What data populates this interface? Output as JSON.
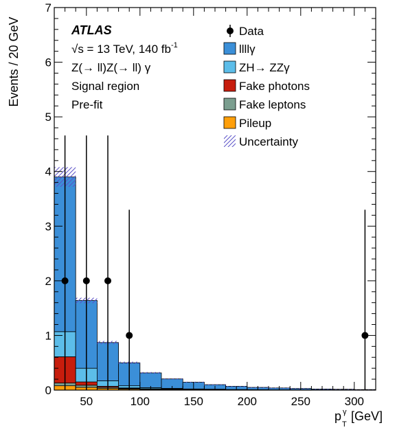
{
  "chart_data": {
    "type": "bar",
    "stacked": true,
    "xlim": [
      20,
      320
    ],
    "ylim": [
      0,
      7
    ],
    "xlabel": "p",
    "xlabel_sub": "T",
    "xlabel_sup": "γ",
    "xlabel_unit": "[GeV]",
    "ylabel": "Events / 20 GeV",
    "x_ticks": [
      50,
      100,
      150,
      200,
      250,
      300
    ],
    "y_ticks": [
      0,
      1,
      2,
      3,
      4,
      5,
      6,
      7
    ],
    "bin_edges": [
      20,
      40,
      60,
      80,
      100,
      120,
      140,
      160,
      180,
      200,
      220,
      240,
      260,
      280,
      300,
      320
    ],
    "legend_position": "top-right",
    "series": [
      {
        "name": "Pileup",
        "color": "#ff9f0a",
        "values": [
          0.08,
          0.05,
          0.03,
          0.02,
          0.01,
          0.01,
          0.005,
          0.005,
          0.003,
          0.002,
          0.002,
          0.001,
          0.001,
          0.001,
          0.001
        ]
      },
      {
        "name": "Fake leptons",
        "color": "#7b9e8f",
        "values": [
          0.05,
          0.04,
          0.02,
          0.01,
          0.01,
          0.005,
          0.004,
          0.003,
          0.002,
          0.002,
          0.001,
          0.001,
          0.001,
          0.001,
          0.001
        ]
      },
      {
        "name": "Fake photons",
        "color": "#c71d0d",
        "values": [
          0.48,
          0.06,
          0.02,
          0.01,
          0.005,
          0.005,
          0.004,
          0.003,
          0.002,
          0.002,
          0.001,
          0.001,
          0.001,
          0.001,
          0.0
        ]
      },
      {
        "name": "ZH→ ZZγ",
        "color": "#5cbde9",
        "values": [
          0.46,
          0.25,
          0.1,
          0.04,
          0.02,
          0.012,
          0.008,
          0.006,
          0.004,
          0.003,
          0.002,
          0.002,
          0.001,
          0.001,
          0.001
        ]
      },
      {
        "name": "llllγ",
        "color": "#3b8fd8",
        "values": [
          2.83,
          1.24,
          0.7,
          0.42,
          0.27,
          0.173,
          0.124,
          0.083,
          0.059,
          0.041,
          0.034,
          0.025,
          0.016,
          0.012,
          0.007
        ]
      }
    ],
    "uncertainty": {
      "name": "Uncertainty",
      "color": "#5b52c8",
      "values": [
        0.18,
        0.05,
        0.03,
        0.02,
        0.015,
        0.01,
        0.008,
        0.006,
        0.005,
        0.004,
        0.003,
        0.002,
        0.002,
        0.002,
        0.002
      ]
    },
    "data": {
      "name": "Data",
      "points": [
        {
          "x": 30,
          "y": 2,
          "err_low": 2,
          "err_high": 2.66
        },
        {
          "x": 50,
          "y": 2,
          "err_low": 2,
          "err_high": 2.66
        },
        {
          "x": 70,
          "y": 2,
          "err_low": 2,
          "err_high": 2.66
        },
        {
          "x": 90,
          "y": 1,
          "err_low": 1,
          "err_high": 2.3
        },
        {
          "x": 310,
          "y": 1,
          "err_low": 1,
          "err_high": 2.3
        }
      ]
    },
    "annotations": {
      "experiment": "ATLAS",
      "energy_line": "√s = 13 TeV, 140 fb",
      "energy_sup": "-1",
      "process": "Z(→ ll)Z(→ ll) γ",
      "region": "Signal region",
      "fit": "Pre-fit"
    },
    "legend": [
      "Data",
      "llllγ",
      "ZH→ ZZγ",
      "Fake photons",
      "Fake leptons",
      "Pileup",
      "Uncertainty"
    ]
  }
}
